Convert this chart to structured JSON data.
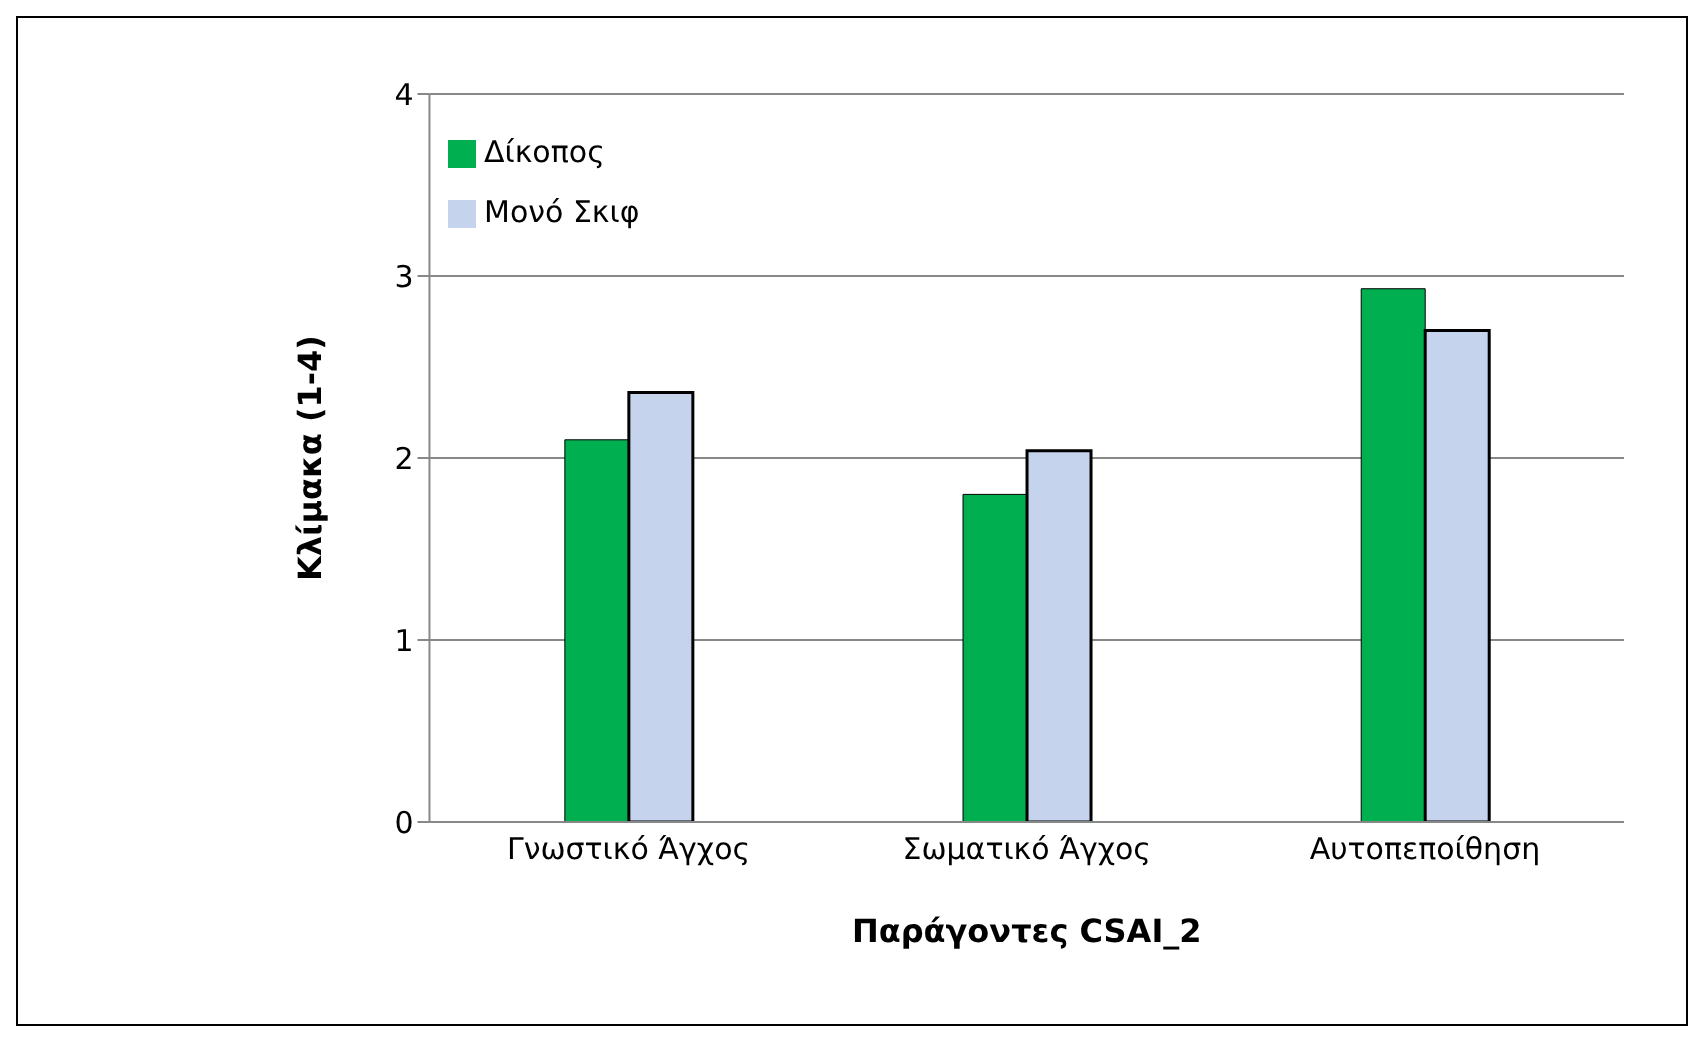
{
  "chart_data": {
    "type": "bar",
    "xlabel": "Παράγοντες CSAI_2",
    "ylabel": "Κλίμακα (1-4)",
    "categories": [
      "Γνωστικό Άγχος",
      "Σωματικό Άγχος",
      "Αυτοπεποίθηση"
    ],
    "series": [
      {
        "name": "Δίκοπος",
        "color": "#00b050",
        "values": [
          2.1,
          1.8,
          2.93
        ]
      },
      {
        "name": "Μονό Σκιφ",
        "color": "#c5d3ec",
        "values": [
          2.36,
          2.04,
          2.7
        ]
      }
    ],
    "ylim": [
      0,
      4
    ],
    "yticks": [
      0,
      1,
      2,
      3,
      4
    ],
    "grid": "y",
    "legend": "top left"
  }
}
